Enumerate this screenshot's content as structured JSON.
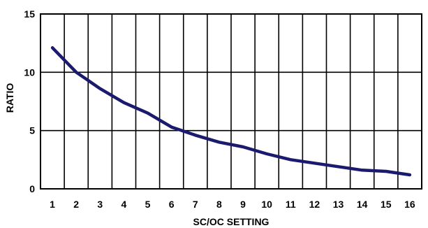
{
  "chart_data": {
    "type": "line",
    "title": "",
    "xlabel": "SC/OC SETTING",
    "ylabel": "RATIO",
    "x": [
      1,
      2,
      3,
      4,
      5,
      6,
      7,
      8,
      9,
      10,
      11,
      12,
      13,
      14,
      15,
      16
    ],
    "xticks": [
      "1",
      "2",
      "3",
      "4",
      "5",
      "6",
      "7",
      "8",
      "9",
      "10",
      "11",
      "12",
      "13",
      "14",
      "15",
      "16"
    ],
    "yticks": [
      "0",
      "5",
      "10",
      "15"
    ],
    "ylim": [
      0,
      15
    ],
    "grid": true,
    "legend": "none",
    "series": [
      {
        "values": [
          12.1,
          10.0,
          8.6,
          7.4,
          6.5,
          5.3,
          4.6,
          4.0,
          3.6,
          3.0,
          2.5,
          2.2,
          1.9,
          1.6,
          1.5,
          1.2
        ],
        "color": "#1a1a6e"
      }
    ]
  }
}
